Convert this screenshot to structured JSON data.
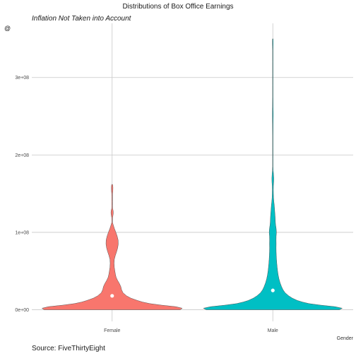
{
  "chart_data": {
    "type": "violin",
    "title": "Distributions of Box Office Earnings",
    "subtitle": "Inflation Not Taken into Account",
    "xlabel": "Gender",
    "ylabel": "@",
    "caption": "Source: FiveThirtyEight",
    "categories": [
      "Female",
      "Male"
    ],
    "ylim": [
      -15000000,
      370000000
    ],
    "yticks": [
      0,
      100000000,
      200000000,
      300000000
    ],
    "ytick_labels": [
      "0e+00",
      "1e+08",
      "2e+08",
      "3e+08"
    ],
    "grid": true,
    "legend": "none",
    "series": [
      {
        "category": "Female",
        "color": "#F8766D",
        "median": 18000000,
        "min": 0,
        "max": 162000000,
        "density": [
          [
            0,
            0.94
          ],
          [
            2000000,
            0.97
          ],
          [
            4000000,
            0.88
          ],
          [
            6000000,
            0.68
          ],
          [
            8000000,
            0.52
          ],
          [
            10000000,
            0.42
          ],
          [
            12000000,
            0.35
          ],
          [
            15000000,
            0.26
          ],
          [
            18000000,
            0.2
          ],
          [
            22000000,
            0.15
          ],
          [
            26000000,
            0.13
          ],
          [
            30000000,
            0.12
          ],
          [
            34000000,
            0.1
          ],
          [
            38000000,
            0.075
          ],
          [
            42000000,
            0.055
          ],
          [
            46000000,
            0.045
          ],
          [
            50000000,
            0.038
          ],
          [
            55000000,
            0.03
          ],
          [
            60000000,
            0.027
          ],
          [
            65000000,
            0.03
          ],
          [
            70000000,
            0.044
          ],
          [
            75000000,
            0.062
          ],
          [
            80000000,
            0.077
          ],
          [
            85000000,
            0.085
          ],
          [
            90000000,
            0.083
          ],
          [
            95000000,
            0.07
          ],
          [
            100000000,
            0.052
          ],
          [
            105000000,
            0.031
          ],
          [
            110000000,
            0.014
          ],
          [
            113000000,
            0.005
          ],
          [
            116000000,
            0.005
          ],
          [
            119000000,
            0.006
          ],
          [
            122000000,
            0.012
          ],
          [
            125000000,
            0.016
          ],
          [
            128000000,
            0.014
          ],
          [
            131000000,
            0.006
          ],
          [
            134000000,
            0.005
          ],
          [
            140000000,
            0.005
          ],
          [
            146000000,
            0.005
          ],
          [
            150000000,
            0.006
          ],
          [
            154000000,
            0.01
          ],
          [
            158000000,
            0.011
          ],
          [
            161000000,
            0.008
          ],
          [
            162000000,
            0.004
          ]
        ]
      },
      {
        "category": "Male",
        "color": "#00BFC4",
        "median": 25000000,
        "min": 0,
        "max": 350000000,
        "density": [
          [
            0,
            0.92
          ],
          [
            2000000,
            0.96
          ],
          [
            4000000,
            0.86
          ],
          [
            6000000,
            0.66
          ],
          [
            8000000,
            0.5
          ],
          [
            10000000,
            0.41
          ],
          [
            12000000,
            0.34
          ],
          [
            15000000,
            0.27
          ],
          [
            18000000,
            0.22
          ],
          [
            22000000,
            0.17
          ],
          [
            26000000,
            0.14
          ],
          [
            30000000,
            0.12
          ],
          [
            35000000,
            0.1
          ],
          [
            40000000,
            0.085
          ],
          [
            45000000,
            0.074
          ],
          [
            50000000,
            0.066
          ],
          [
            55000000,
            0.06
          ],
          [
            60000000,
            0.055
          ],
          [
            65000000,
            0.051
          ],
          [
            70000000,
            0.048
          ],
          [
            75000000,
            0.046
          ],
          [
            80000000,
            0.045
          ],
          [
            85000000,
            0.046
          ],
          [
            90000000,
            0.045
          ],
          [
            95000000,
            0.046
          ],
          [
            100000000,
            0.05
          ],
          [
            105000000,
            0.046
          ],
          [
            110000000,
            0.038
          ],
          [
            115000000,
            0.034
          ],
          [
            120000000,
            0.032
          ],
          [
            125000000,
            0.028
          ],
          [
            130000000,
            0.024
          ],
          [
            135000000,
            0.02
          ],
          [
            140000000,
            0.014
          ],
          [
            145000000,
            0.01
          ],
          [
            150000000,
            0.008
          ],
          [
            155000000,
            0.007
          ],
          [
            160000000,
            0.008
          ],
          [
            165000000,
            0.012
          ],
          [
            170000000,
            0.013
          ],
          [
            175000000,
            0.01
          ],
          [
            180000000,
            0.005
          ],
          [
            185000000,
            0.003
          ],
          [
            195000000,
            0.003
          ],
          [
            210000000,
            0.003
          ],
          [
            225000000,
            0.003
          ],
          [
            240000000,
            0.004
          ],
          [
            250000000,
            0.006
          ],
          [
            255000000,
            0.006
          ],
          [
            262000000,
            0.004
          ],
          [
            275000000,
            0.003
          ],
          [
            290000000,
            0.003
          ],
          [
            305000000,
            0.003
          ],
          [
            320000000,
            0.003
          ],
          [
            335000000,
            0.003
          ],
          [
            340000000,
            0.004
          ],
          [
            344000000,
            0.005
          ],
          [
            348000000,
            0.005
          ],
          [
            350000000,
            0.003
          ]
        ]
      }
    ]
  }
}
